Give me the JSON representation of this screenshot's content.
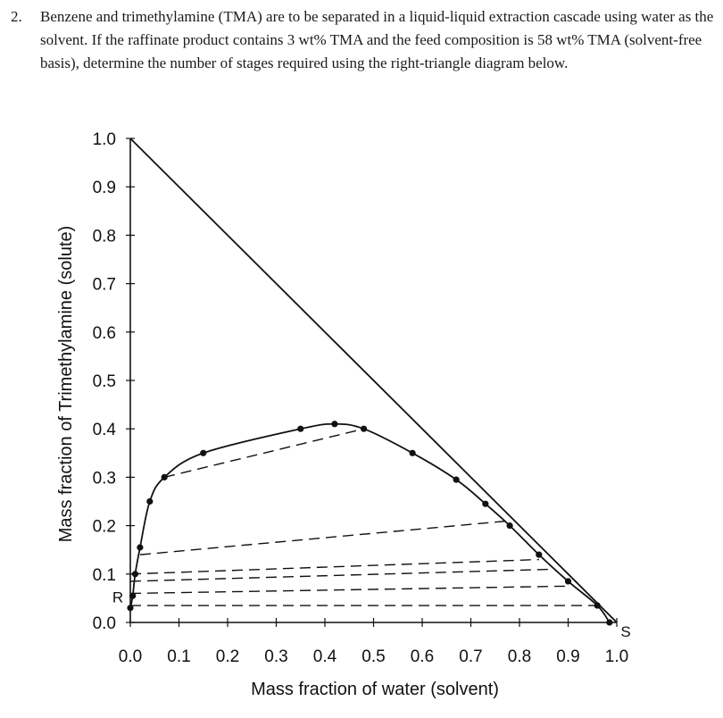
{
  "problem": {
    "number": "2.",
    "text": "Benzene and trimethylamine (TMA) are to be separated in a liquid-liquid extraction cascade using water as the solvent.  If the raffinate product contains 3 wt% TMA and the feed composition is 58 wt% TMA (solvent-free basis), determine the number of stages required using the right-triangle diagram below."
  },
  "chart_data": {
    "type": "scatter",
    "xlabel": "Mass fraction of water (solvent)",
    "ylabel": "Mass fraction of Trimethylamine (solute)",
    "xlim": [
      0,
      1
    ],
    "ylim": [
      0,
      1
    ],
    "x_ticks": [
      "0.0",
      "0.1",
      "0.2",
      "0.3",
      "0.4",
      "0.5",
      "0.6",
      "0.7",
      "0.8",
      "0.9",
      "1.0"
    ],
    "y_ticks": [
      "0.0",
      "0.1",
      "0.2",
      "0.3",
      "0.4",
      "0.5",
      "0.6",
      "0.7",
      "0.8",
      "0.9",
      "1.0"
    ],
    "hypotenuse": {
      "x": [
        0,
        1
      ],
      "y": [
        1,
        0
      ]
    },
    "binodal": {
      "x": [
        0.0,
        0.005,
        0.01,
        0.02,
        0.04,
        0.07,
        0.15,
        0.35,
        0.42,
        0.48,
        0.58,
        0.67,
        0.73,
        0.78,
        0.84,
        0.9,
        0.96,
        0.985
      ],
      "y": [
        0.03,
        0.055,
        0.1,
        0.155,
        0.25,
        0.3,
        0.35,
        0.4,
        0.41,
        0.4,
        0.35,
        0.295,
        0.245,
        0.2,
        0.14,
        0.085,
        0.035,
        0.0
      ]
    },
    "tie_lines": [
      {
        "x": [
          0.0,
          0.96
        ],
        "y": [
          0.035,
          0.035
        ]
      },
      {
        "x": [
          0.0,
          0.9
        ],
        "y": [
          0.06,
          0.075
        ]
      },
      {
        "x": [
          0.0,
          0.87
        ],
        "y": [
          0.085,
          0.11
        ]
      },
      {
        "x": [
          0.0,
          0.84
        ],
        "y": [
          0.1,
          0.13
        ]
      },
      {
        "x": [
          0.02,
          0.78
        ],
        "y": [
          0.14,
          0.21
        ]
      },
      {
        "x": [
          0.07,
          0.48
        ],
        "y": [
          0.3,
          0.4
        ]
      }
    ],
    "annotations": [
      {
        "text": "R",
        "x": 0.0,
        "y": 0.03
      },
      {
        "text": "S",
        "x": 1.0,
        "y": 0.0
      }
    ]
  }
}
